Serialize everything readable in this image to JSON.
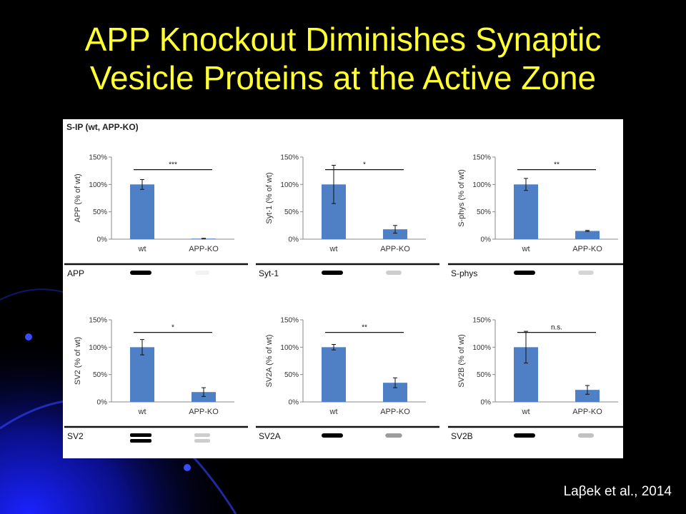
{
  "slide": {
    "title_line1": "APP Knockout Diminishes Synaptic",
    "title_line2": "Vesicle Proteins at the Active Zone",
    "citation": "Laβek et al., 2014"
  },
  "figure": {
    "panel_label": "S-IP (wt, APP-KO)"
  },
  "colors": {
    "bar": "#4f7fc4",
    "title": "#ffff33",
    "background_glow": "#1a22ff"
  },
  "chart_data": [
    {
      "type": "bar",
      "ylabel": "APP (% of wt)",
      "categories": [
        "wt",
        "APP-KO"
      ],
      "values": [
        100,
        1
      ],
      "errors": [
        9,
        0.5
      ],
      "significance": "***",
      "ylim": [
        0,
        150
      ],
      "yticks": [
        "0%",
        "50%",
        "100%",
        "150%"
      ],
      "blot_label": "APP",
      "blot": "single"
    },
    {
      "type": "bar",
      "ylabel": "Syt-1 (% of wt)",
      "categories": [
        "wt",
        "APP-KO"
      ],
      "values": [
        100,
        18
      ],
      "errors": [
        35,
        7
      ],
      "significance": "*",
      "ylim": [
        0,
        150
      ],
      "yticks": [
        "0%",
        "50%",
        "100%",
        "150%"
      ],
      "blot_label": "Syt-1",
      "blot": "single"
    },
    {
      "type": "bar",
      "ylabel": "S-phys (% of wt)",
      "categories": [
        "wt",
        "APP-KO"
      ],
      "values": [
        100,
        15
      ],
      "errors": [
        11,
        1
      ],
      "significance": "**",
      "ylim": [
        0,
        150
      ],
      "yticks": [
        "0%",
        "50%",
        "100%",
        "150%"
      ],
      "blot_label": "S-phys",
      "blot": "single"
    },
    {
      "type": "bar",
      "ylabel": "SV2 (% of wt)",
      "categories": [
        "wt",
        "APP-KO"
      ],
      "values": [
        100,
        18
      ],
      "errors": [
        14,
        8
      ],
      "significance": "*",
      "ylim": [
        0,
        150
      ],
      "yticks": [
        "0%",
        "50%",
        "100%",
        "150%"
      ],
      "blot_label": "SV2",
      "blot": "double"
    },
    {
      "type": "bar",
      "ylabel": "SV2A (% of wt)",
      "categories": [
        "wt",
        "APP-KO"
      ],
      "values": [
        100,
        35
      ],
      "errors": [
        5,
        9
      ],
      "significance": "**",
      "ylim": [
        0,
        150
      ],
      "yticks": [
        "0%",
        "50%",
        "100%",
        "150%"
      ],
      "blot_label": "SV2A",
      "blot": "single"
    },
    {
      "type": "bar",
      "ylabel": "SV2B (% of wt)",
      "categories": [
        "wt",
        "APP-KO"
      ],
      "values": [
        100,
        22
      ],
      "errors": [
        29,
        8
      ],
      "significance": "n.s.",
      "ylim": [
        0,
        150
      ],
      "yticks": [
        "0%",
        "50%",
        "100%",
        "150%"
      ],
      "blot_label": "SV2B",
      "blot": "single"
    }
  ]
}
